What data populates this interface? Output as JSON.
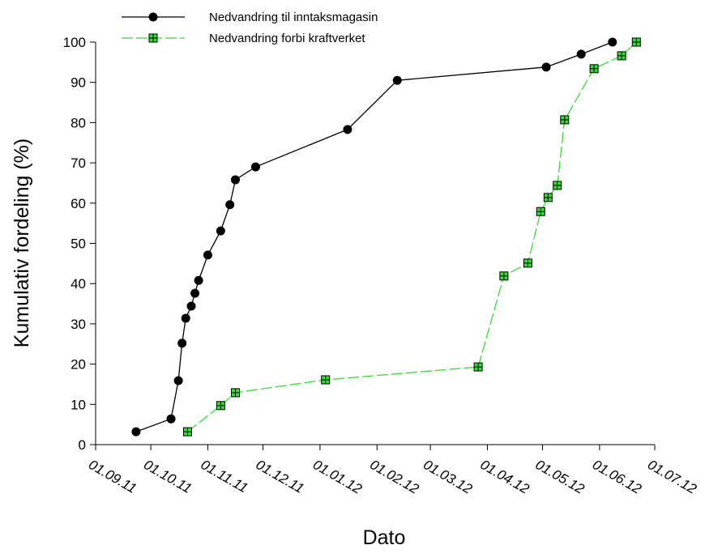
{
  "chart_data": {
    "type": "line",
    "x_label": "Dato",
    "y_label": "Kumulativ fordeling (%)",
    "xlim": [
      "2011-09-01",
      "2012-07-01"
    ],
    "xticks": [
      {
        "value": "2011-09-01",
        "label": "01.09.11"
      },
      {
        "value": "2011-10-01",
        "label": "01.10.11"
      },
      {
        "value": "2011-11-01",
        "label": "01.11.11"
      },
      {
        "value": "2011-12-01",
        "label": "01.12.11"
      },
      {
        "value": "2012-01-01",
        "label": "01.01.12"
      },
      {
        "value": "2012-02-01",
        "label": "01.02.12"
      },
      {
        "value": "2012-03-01",
        "label": "01.03.12"
      },
      {
        "value": "2012-04-01",
        "label": "01.04.12"
      },
      {
        "value": "2012-05-01",
        "label": "01.05.12"
      },
      {
        "value": "2012-06-01",
        "label": "01.06.12"
      },
      {
        "value": "2012-07-01",
        "label": "01.07.12"
      }
    ],
    "ylim": [
      0,
      100
    ],
    "yticks": [
      0,
      10,
      20,
      30,
      40,
      50,
      60,
      70,
      80,
      90,
      100
    ],
    "legend": "top-left",
    "series": [
      {
        "name": "Nedvandring til inntaksmagasin",
        "color": "#000000",
        "marker": "circle",
        "line_style": "solid",
        "x": [
          "2011-09-23",
          "2011-10-12",
          "2011-10-16",
          "2011-10-18",
          "2011-10-20",
          "2011-10-23",
          "2011-10-25",
          "2011-10-27",
          "2011-11-01",
          "2011-11-08",
          "2011-11-13",
          "2011-11-16",
          "2011-11-27",
          "2012-01-16",
          "2012-02-12",
          "2012-05-03",
          "2012-05-22",
          "2012-06-08"
        ],
        "values": [
          3.2,
          6.4,
          15.9,
          25.2,
          31.4,
          34.4,
          37.6,
          40.8,
          47.1,
          53.1,
          59.6,
          65.8,
          69,
          78.3,
          90.5,
          93.8,
          97,
          100
        ]
      },
      {
        "name": "Nedvandring forbi kraftverket",
        "color": "#33dd33",
        "marker": "square",
        "line_style": "dashed",
        "x": [
          "2011-10-21",
          "2011-11-08",
          "2011-11-16",
          "2012-01-04",
          "2012-03-27",
          "2012-04-10",
          "2012-04-23",
          "2012-04-30",
          "2012-05-04",
          "2012-05-09",
          "2012-05-13",
          "2012-05-29",
          "2012-06-13",
          "2012-06-21"
        ],
        "values": [
          3.2,
          9.7,
          12.9,
          16.1,
          19.3,
          41.9,
          45.1,
          57.9,
          61.4,
          64.4,
          80.7,
          93.4,
          96.6,
          100
        ]
      }
    ]
  }
}
